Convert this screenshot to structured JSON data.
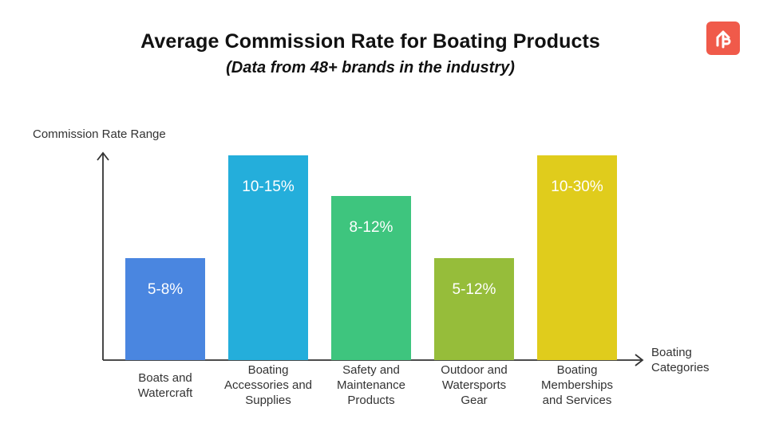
{
  "header": {
    "title": "Average Commission Rate for Boating Products",
    "subtitle": "(Data from 48+ brands in the industry)"
  },
  "logo": {
    "icon": "up-arrow-logo-icon",
    "color": "#f05a4a"
  },
  "chart_data": {
    "type": "bar",
    "ylabel": "Commission Rate Range",
    "xlabel": [
      "Boating",
      "Categories"
    ],
    "categories": [
      [
        "Boats and",
        "Watercraft"
      ],
      [
        "Boating",
        "Accessories and",
        "Supplies"
      ],
      [
        "Safety and",
        "Maintenance",
        "Products"
      ],
      [
        "Outdoor and",
        "Watersports",
        "Gear"
      ],
      [
        "Boating",
        "Memberships",
        "and Services"
      ]
    ],
    "ranges": [
      [
        5,
        8
      ],
      [
        10,
        15
      ],
      [
        8,
        12
      ],
      [
        5,
        12
      ],
      [
        10,
        30
      ]
    ],
    "labels": [
      "5-8%",
      "10-15%",
      "8-12%",
      "5-12%",
      "10-30%"
    ],
    "colors": [
      "#4a86e0",
      "#24aedb",
      "#3ec57e",
      "#96bd3a",
      "#e0cc1c"
    ],
    "grid": false,
    "legend": "none"
  }
}
